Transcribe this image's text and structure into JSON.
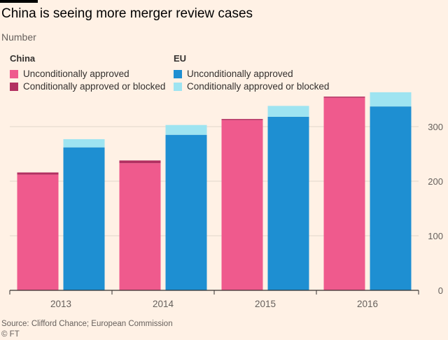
{
  "header": {
    "title": "China is seeing more merger review cases",
    "subtitle": "Number"
  },
  "legend": {
    "china_label": "China",
    "china_uncond": "Unconditionally approved",
    "china_cond": "Conditionally approved or blocked",
    "eu_label": "EU",
    "eu_uncond": "Unconditionally approved",
    "eu_cond": "Conditionally approved or blocked"
  },
  "colors": {
    "china_uncond": "#ef5a8d",
    "china_cond": "#b23061",
    "eu_uncond": "#1e8fd2",
    "eu_cond": "#9ee4f1",
    "grid": "#e0d6cc",
    "axis": "#66605c"
  },
  "chart_data": {
    "type": "bar",
    "stacked": true,
    "grouped": true,
    "title": "China is seeing more merger review cases",
    "ylabel": "Number",
    "categories": [
      "2013",
      "2014",
      "2015",
      "2016"
    ],
    "ylim": [
      0,
      370
    ],
    "yticks": [
      0,
      100,
      200,
      300
    ],
    "y_axis_side": "right",
    "groups": [
      {
        "name": "China",
        "series": [
          {
            "name": "Unconditionally approved",
            "values": [
              212,
              233,
              312,
              353
            ]
          },
          {
            "name": "Conditionally approved or blocked",
            "values": [
              4,
              5,
              2,
              2
            ]
          }
        ]
      },
      {
        "name": "EU",
        "series": [
          {
            "name": "Unconditionally approved",
            "values": [
              262,
              285,
              318,
              337
            ]
          },
          {
            "name": "Conditionally approved or blocked",
            "values": [
              15,
              18,
              20,
              26
            ]
          }
        ]
      }
    ]
  },
  "footer": {
    "source": "Source: Clifford Chance; European Commission",
    "copyright": "© FT"
  }
}
